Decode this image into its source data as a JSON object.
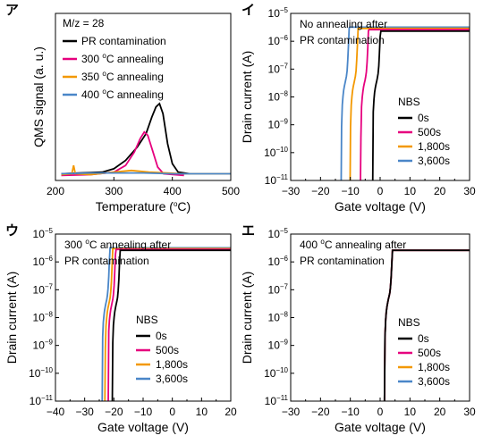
{
  "chart_data": [
    {
      "type": "line",
      "panel_label": "ア",
      "xlabel": "Temperature (oC)",
      "ylabel": "QMS signal (a. u.)",
      "xlim": [
        200,
        500
      ],
      "x_ticks": [
        200,
        300,
        400,
        500
      ],
      "y_ticks": [],
      "ylim": [
        0,
        1
      ],
      "legend_title": "M/z = 28",
      "legend_position": "top-left",
      "series": [
        {
          "name": "PR contamination",
          "color": "#000000",
          "points": [
            [
              210,
              0.04
            ],
            [
              240,
              0.045
            ],
            [
              280,
              0.05
            ],
            [
              300,
              0.07
            ],
            [
              320,
              0.12
            ],
            [
              340,
              0.2
            ],
            [
              355,
              0.28
            ],
            [
              365,
              0.38
            ],
            [
              372,
              0.44
            ],
            [
              378,
              0.46
            ],
            [
              384,
              0.4
            ],
            [
              392,
              0.22
            ],
            [
              400,
              0.1
            ],
            [
              410,
              0.05
            ],
            [
              430,
              0.04
            ]
          ]
        },
        {
          "name": "300 oC annealing",
          "color": "#e6007e",
          "points": [
            [
              210,
              0.03
            ],
            [
              260,
              0.035
            ],
            [
              300,
              0.05
            ],
            [
              320,
              0.09
            ],
            [
              335,
              0.17
            ],
            [
              345,
              0.25
            ],
            [
              352,
              0.29
            ],
            [
              358,
              0.27
            ],
            [
              366,
              0.18
            ],
            [
              375,
              0.08
            ],
            [
              385,
              0.04
            ],
            [
              420,
              0.03
            ]
          ]
        },
        {
          "name": "350 oC annealing",
          "color": "#f39800",
          "points": [
            [
              210,
              0.035
            ],
            [
              228,
              0.04
            ],
            [
              231,
              0.09
            ],
            [
              234,
              0.04
            ],
            [
              260,
              0.035
            ],
            [
              300,
              0.05
            ],
            [
              330,
              0.06
            ],
            [
              360,
              0.05
            ],
            [
              420,
              0.04
            ],
            [
              500,
              0.04
            ]
          ]
        },
        {
          "name": "400 oC annealing",
          "color": "#4a86c8",
          "points": [
            [
              210,
              0.04
            ],
            [
              260,
              0.045
            ],
            [
              300,
              0.045
            ],
            [
              350,
              0.045
            ],
            [
              400,
              0.04
            ],
            [
              450,
              0.04
            ],
            [
              500,
              0.04
            ]
          ]
        }
      ]
    },
    {
      "type": "line",
      "panel_label": "イ",
      "xlabel": "Gate voltage (V)",
      "ylabel": "Drain current (A)",
      "xlim": [
        -30,
        30
      ],
      "ylim_exp": [
        -11,
        -5
      ],
      "x_ticks": [
        -30,
        -20,
        -10,
        0,
        10,
        20,
        30
      ],
      "y_ticks": [
        "10−11",
        "10−10",
        "10−9",
        "10−8",
        "10−7",
        "10−6",
        "10−5"
      ],
      "annotation": [
        "No annealing after",
        "PR contamination"
      ],
      "legend_title": "NBS",
      "series": [
        {
          "name": "0s",
          "color": "#000000",
          "vth": -2.5,
          "ymax": 2.3e-06
        },
        {
          "name": "500s",
          "color": "#e6007e",
          "vth": -6.5,
          "ymax": 2.6e-06
        },
        {
          "name": "1,800s",
          "color": "#f39800",
          "vth": -10,
          "ymax": 2.9e-06
        },
        {
          "name": "3,600s",
          "color": "#4a86c8",
          "vth": -13,
          "ymax": 3.2e-06
        }
      ]
    },
    {
      "type": "line",
      "panel_label": "ウ",
      "xlabel": "Gate voltage (V)",
      "ylabel": "Drain current (A)",
      "xlim": [
        -40,
        20
      ],
      "ylim_exp": [
        -11,
        -5
      ],
      "x_ticks": [
        -40,
        -30,
        -20,
        -10,
        0,
        10,
        20
      ],
      "y_ticks": [
        "10−11",
        "10−10",
        "10−9",
        "10−8",
        "10−7",
        "10−6",
        "10−5"
      ],
      "annotation": [
        "300 oC  annealing after",
        "PR contamination"
      ],
      "legend_title": "NBS",
      "series": [
        {
          "name": "0s",
          "color": "#000000",
          "vth": -20.5,
          "ymax": 2.6e-06
        },
        {
          "name": "500s",
          "color": "#e6007e",
          "vth": -22,
          "ymax": 2.8e-06
        },
        {
          "name": "1,800s",
          "color": "#f39800",
          "vth": -23,
          "ymax": 3e-06
        },
        {
          "name": "3,600s",
          "color": "#4a86c8",
          "vth": -24,
          "ymax": 3.2e-06
        }
      ]
    },
    {
      "type": "line",
      "panel_label": "エ",
      "xlabel": "Gate voltage (V)",
      "ylabel": "Drain current (A)",
      "xlim": [
        -30,
        30
      ],
      "ylim_exp": [
        -11,
        -5
      ],
      "x_ticks": [
        -30,
        -20,
        -10,
        0,
        10,
        20,
        30
      ],
      "y_ticks": [
        "10−11",
        "10−10",
        "10−9",
        "10−8",
        "10−7",
        "10−6",
        "10−5"
      ],
      "annotation": [
        "400 oC annealing after",
        "PR contamination"
      ],
      "legend_title": "NBS",
      "series": [
        {
          "name": "0s",
          "color": "#000000",
          "vth": 1.5,
          "ymax": 2.6e-06
        },
        {
          "name": "500s",
          "color": "#e6007e",
          "vth": 1.5,
          "ymax": 2.6e-06
        },
        {
          "name": "1,800s",
          "color": "#f39800",
          "vth": 1.5,
          "ymax": 2.6e-06
        },
        {
          "name": "3,600s",
          "color": "#4a86c8",
          "vth": 1.5,
          "ymax": 2.6e-06
        }
      ]
    }
  ]
}
